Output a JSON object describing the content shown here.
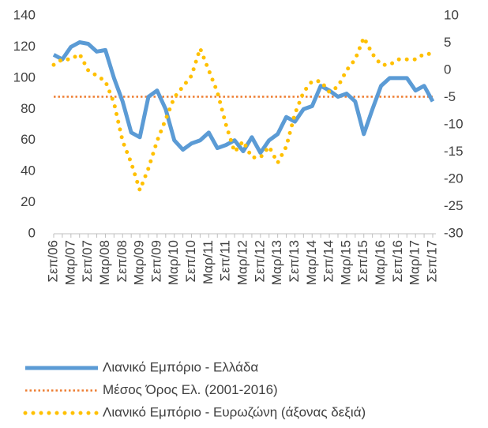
{
  "chart_data": {
    "type": "line",
    "categories": [
      "Σεπ/06",
      null,
      "Μαρ/07",
      null,
      "Σεπ/07",
      null,
      "Μαρ/08",
      null,
      "Σεπ/08",
      null,
      "Μαρ/09",
      null,
      "Σεπ/09",
      null,
      "Μαρ/10",
      null,
      "Σεπ/10",
      null,
      "Μαρ/11",
      null,
      "Σεπ/11",
      null,
      "Μαρ/12",
      null,
      "Σεπ/12",
      null,
      "Μαρ/13",
      null,
      "Σεπ/13",
      null,
      "Μαρ/14",
      null,
      "Σεπ/14",
      null,
      "Μαρ/15",
      null,
      "Σεπ/15",
      null,
      "Μαρ/16",
      null,
      "Σεπ/16",
      null,
      "Μαρ/17",
      null,
      "Σεπ/17"
    ],
    "series": [
      {
        "name": "Λιανικό Εμπόριο  - Ελλάδα",
        "color": "#5b9bd5",
        "line_style": "solid",
        "values": [
          115,
          112,
          120,
          123,
          122,
          117,
          118,
          100,
          85,
          65,
          62,
          88,
          92,
          80,
          60,
          54,
          58,
          60,
          65,
          55,
          57,
          60,
          53,
          62,
          52,
          60,
          64,
          75,
          72,
          80,
          82,
          95,
          92,
          88,
          90,
          85,
          64,
          80,
          95,
          100,
          100,
          100,
          92,
          95,
          85
        ]
      },
      {
        "name": "Μέσος Όρος Ελ.  (2001-2016)",
        "color": "#ed7d31",
        "line_style": "dotted",
        "values": [
          88,
          88,
          88,
          88,
          88,
          88,
          88,
          88,
          88,
          88,
          88,
          88,
          88,
          88,
          88,
          88,
          88,
          88,
          88,
          88,
          88,
          88,
          88,
          88,
          88,
          88,
          88,
          88,
          88,
          88,
          88,
          88,
          88,
          88,
          88,
          88,
          88,
          88,
          88,
          88,
          88,
          88,
          88,
          88,
          88
        ]
      },
      {
        "name": "Λιανικό Εμπόριο - Ευρωζώνη (άξονας δεξιά)",
        "color": "#ffc000",
        "line_style": "dots",
        "axis": "y2",
        "values": [
          1,
          2,
          2,
          3,
          0,
          -1,
          -2,
          -6,
          -13,
          -17,
          -22,
          -18,
          -13,
          -9,
          -5,
          -3,
          -1,
          4,
          0,
          -4,
          -10,
          -15,
          -13,
          -16,
          -16,
          -14,
          -17,
          -14,
          -8,
          -4,
          -2,
          -2,
          -4,
          -3,
          0,
          2,
          6,
          3,
          1,
          1,
          2,
          2,
          2,
          3,
          3
        ]
      }
    ],
    "ylim": [
      0,
      140
    ],
    "yticks": [
      0,
      20,
      40,
      60,
      80,
      100,
      120,
      140
    ],
    "y2lim": [
      -30,
      10
    ],
    "y2ticks": [
      -30,
      -25,
      -20,
      -15,
      -10,
      -5,
      0,
      5,
      10
    ],
    "grid": false
  }
}
